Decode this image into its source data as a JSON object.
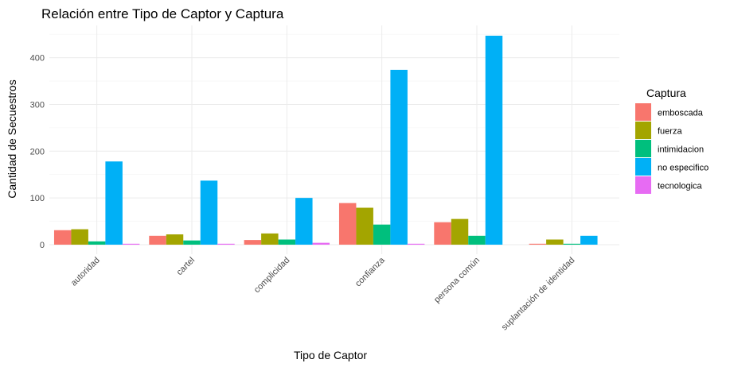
{
  "chart_data": {
    "type": "bar",
    "title": "Relación entre Tipo de Captor y Captura",
    "xlabel": "Tipo de Captor",
    "ylabel": "Cantidad de Secuestros",
    "categories": [
      "autoridad",
      "cartel",
      "complicidad",
      "confianza",
      "persona común",
      "suplantación de identidad"
    ],
    "ylim": [
      0,
      460
    ],
    "yticks": [
      0,
      100,
      200,
      300,
      400
    ],
    "grid": true,
    "legend": {
      "title": "Captura",
      "position": "right"
    },
    "series": [
      {
        "name": "emboscada",
        "color": "#F8766D",
        "values": [
          31,
          19,
          10,
          89,
          48,
          2
        ]
      },
      {
        "name": "fuerza",
        "color": "#A3A500",
        "values": [
          33,
          22,
          24,
          79,
          55,
          11
        ]
      },
      {
        "name": "intimidacion",
        "color": "#00BF7D",
        "values": [
          7,
          9,
          11,
          43,
          19,
          2
        ]
      },
      {
        "name": "no especifico",
        "color": "#00B0F6",
        "values": [
          178,
          137,
          100,
          374,
          447,
          19
        ]
      },
      {
        "name": "tecnologica",
        "color": "#E76BF3",
        "values": [
          2,
          2,
          4,
          2,
          0,
          0
        ]
      }
    ]
  }
}
